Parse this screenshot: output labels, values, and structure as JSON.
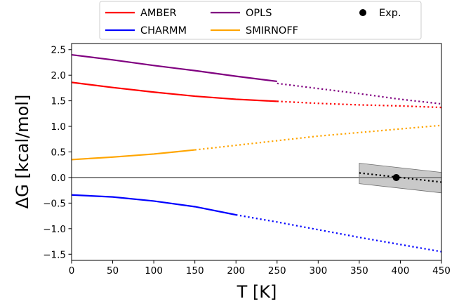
{
  "chart_data": {
    "type": "line",
    "title": "",
    "xlabel": "T [K]",
    "ylabel": "ΔG [kcal/mol]",
    "xlim": [
      0,
      450
    ],
    "ylim": [
      -1.62,
      2.62
    ],
    "xticks": [
      0,
      50,
      100,
      150,
      200,
      250,
      300,
      350,
      400,
      450
    ],
    "yticks": [
      -1.5,
      -1.0,
      -0.5,
      0.0,
      0.5,
      1.0,
      1.5,
      2.0,
      2.5
    ],
    "xtick_labels": [
      "0",
      "50",
      "100",
      "150",
      "200",
      "250",
      "300",
      "350",
      "400",
      "450"
    ],
    "ytick_labels": [
      "−1.5",
      "−1.0",
      "−0.5",
      "0.0",
      "0.5",
      "1.0",
      "1.5",
      "2.0",
      "2.5"
    ],
    "grid": false,
    "legend_position": "top, above plot",
    "zero_line": {
      "y": 0.0,
      "color": "#808080"
    },
    "series": [
      {
        "name": "AMBER",
        "color": "#ff0000",
        "solid": {
          "x": [
            0,
            50,
            100,
            150,
            200,
            250
          ],
          "y": [
            1.86,
            1.76,
            1.67,
            1.59,
            1.53,
            1.49
          ]
        },
        "dotted": {
          "x": [
            250,
            300,
            350,
            400,
            450
          ],
          "y": [
            1.49,
            1.45,
            1.42,
            1.4,
            1.37
          ]
        }
      },
      {
        "name": "CHARMM",
        "color": "#0000ff",
        "solid": {
          "x": [
            0,
            50,
            100,
            150,
            200
          ],
          "y": [
            -0.34,
            -0.38,
            -0.46,
            -0.57,
            -0.73
          ]
        },
        "dotted": {
          "x": [
            200,
            250,
            300,
            350,
            400,
            450
          ],
          "y": [
            -0.73,
            -0.87,
            -1.02,
            -1.17,
            -1.31,
            -1.45
          ]
        }
      },
      {
        "name": "OPLS",
        "color": "#800080",
        "solid": {
          "x": [
            0,
            50,
            100,
            150,
            200,
            250
          ],
          "y": [
            2.4,
            2.3,
            2.19,
            2.09,
            1.98,
            1.88
          ]
        },
        "dotted": {
          "x": [
            250,
            300,
            350,
            400,
            450
          ],
          "y": [
            1.84,
            1.74,
            1.64,
            1.53,
            1.44
          ]
        }
      },
      {
        "name": "SMIRNOFF",
        "color": "#ffa500",
        "solid": {
          "x": [
            0,
            50,
            100,
            150
          ],
          "y": [
            0.35,
            0.4,
            0.46,
            0.54
          ]
        },
        "dotted": {
          "x": [
            150,
            200,
            250,
            300,
            350,
            400,
            450
          ],
          "y": [
            0.54,
            0.63,
            0.72,
            0.81,
            0.88,
            0.95,
            1.02
          ]
        }
      }
    ],
    "experimental": {
      "name": "Exp.",
      "color": "#000000",
      "point": {
        "x": 395,
        "y": 0.0
      },
      "fit": {
        "x": [
          350,
          450
        ],
        "y": [
          0.09,
          -0.09
        ]
      },
      "band": {
        "x": [
          350,
          450
        ],
        "upper": [
          0.28,
          0.1
        ],
        "lower": [
          -0.12,
          -0.3
        ],
        "color": "#c0c0c0"
      }
    }
  }
}
